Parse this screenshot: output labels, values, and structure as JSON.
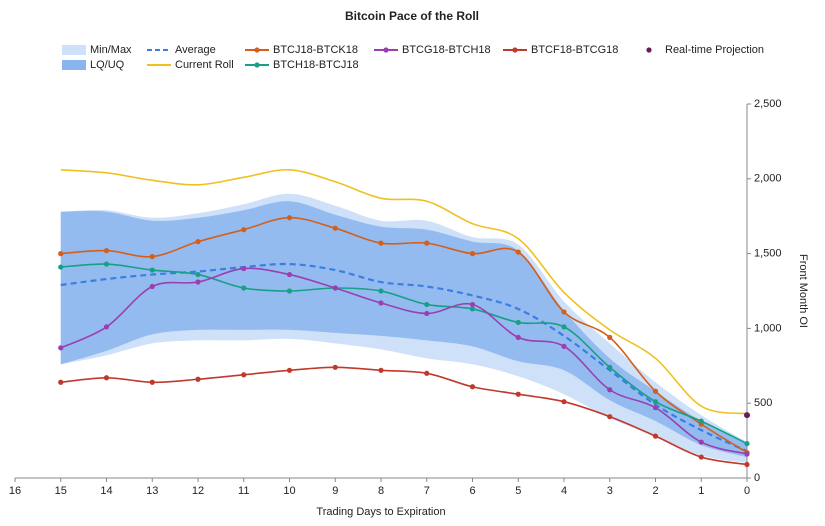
{
  "chart_data": {
    "type": "line",
    "title": "Bitcoin Pace of the Roll",
    "xlabel": "Trading Days to Expiration",
    "ylabel": "Front Month OI",
    "x": [
      15,
      14,
      13,
      12,
      11,
      10,
      9,
      8,
      7,
      6,
      5,
      4,
      3,
      2,
      1,
      0
    ],
    "xlim": [
      16,
      0
    ],
    "xticks": [
      16,
      15,
      14,
      13,
      12,
      11,
      10,
      9,
      8,
      7,
      6,
      5,
      4,
      3,
      2,
      1,
      0
    ],
    "ylim": [
      0,
      2500
    ],
    "yticks": [
      0,
      500,
      {
        "value": 1000,
        "label": "1,000"
      },
      {
        "value": 1500,
        "label": "1,500"
      },
      {
        "value": 2000,
        "label": "2,000"
      },
      {
        "value": 2500,
        "label": "2,500"
      }
    ],
    "grid": false,
    "smooth": true,
    "bands": [
      {
        "name": "Min/Max",
        "color": "#cfe1f8",
        "upper": [
          1780,
          1790,
          1740,
          1770,
          1830,
          1900,
          1820,
          1720,
          1720,
          1610,
          1560,
          1180,
          900,
          640,
          420,
          240
        ],
        "lower": [
          760,
          820,
          900,
          920,
          920,
          930,
          900,
          860,
          800,
          760,
          680,
          560,
          400,
          280,
          150,
          100
        ]
      },
      {
        "name": "LQ/UQ",
        "color": "#89b4ee",
        "upper": [
          1780,
          1780,
          1720,
          1740,
          1790,
          1850,
          1760,
          1680,
          1660,
          1580,
          1520,
          1120,
          800,
          580,
          380,
          230
        ],
        "lower": [
          760,
          850,
          960,
          990,
          990,
          990,
          970,
          950,
          920,
          880,
          780,
          720,
          520,
          380,
          220,
          140
        ]
      }
    ],
    "series": [
      {
        "name": "Average",
        "color": "#3a7fe0",
        "dash": true,
        "markers": false,
        "values": [
          1290,
          1330,
          1360,
          1380,
          1410,
          1430,
          1390,
          1310,
          1280,
          1220,
          1130,
          950,
          720,
          490,
          320,
          180
        ]
      },
      {
        "name": "Current Roll",
        "color": "#f0c020",
        "dash": false,
        "markers": false,
        "values": [
          2060,
          2040,
          1990,
          1960,
          2010,
          2060,
          1980,
          1870,
          1850,
          1700,
          1600,
          1240,
          990,
          800,
          480,
          430
        ]
      },
      {
        "name": "BTCJ18-BTCK18",
        "color": "#d35f1a",
        "dash": false,
        "markers": true,
        "values": [
          1500,
          1520,
          1480,
          1580,
          1660,
          1740,
          1670,
          1570,
          1570,
          1500,
          1510,
          1110,
          940,
          580,
          360,
          170
        ]
      },
      {
        "name": "BTCH18-BTCJ18",
        "color": "#17a085",
        "dash": false,
        "markers": true,
        "values": [
          1410,
          1430,
          1390,
          1360,
          1270,
          1250,
          1270,
          1250,
          1160,
          1130,
          1040,
          1010,
          740,
          510,
          380,
          230
        ]
      },
      {
        "name": "BTCG18-BTCH18",
        "color": "#9b3fb0",
        "dash": false,
        "markers": true,
        "values": [
          870,
          1010,
          1280,
          1310,
          1400,
          1360,
          1270,
          1170,
          1100,
          1160,
          940,
          880,
          590,
          470,
          240,
          160
        ]
      },
      {
        "name": "BTCF18-BTCG18",
        "color": "#c0392b",
        "dash": false,
        "markers": true,
        "values": [
          640,
          670,
          640,
          660,
          690,
          720,
          740,
          720,
          700,
          610,
          560,
          510,
          410,
          280,
          140,
          90
        ]
      },
      {
        "name": "Real-time Projection",
        "color": "#6a1b5a",
        "type": "scatter",
        "x": [
          0
        ],
        "values": [
          420
        ]
      }
    ]
  }
}
